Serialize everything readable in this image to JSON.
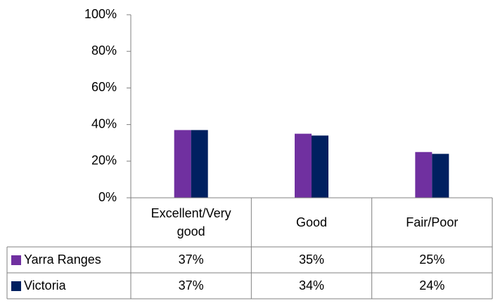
{
  "chart_data": {
    "type": "bar",
    "categories": [
      "Excellent/Very good",
      "Good",
      "Fair/Poor"
    ],
    "series": [
      {
        "name": "Yarra Ranges",
        "color": "#7030A0",
        "values": [
          37,
          35,
          25
        ],
        "value_labels": [
          "37%",
          "35%",
          "25%"
        ]
      },
      {
        "name": "Victoria",
        "color": "#002060",
        "values": [
          37,
          34,
          24
        ],
        "value_labels": [
          "37%",
          "34%",
          "24%"
        ]
      }
    ],
    "ylim": [
      0,
      100
    ],
    "yticks": [
      {
        "value": 0,
        "label": "0%"
      },
      {
        "value": 20,
        "label": "20%"
      },
      {
        "value": 40,
        "label": "40%"
      },
      {
        "value": 60,
        "label": "60%"
      },
      {
        "value": 80,
        "label": "80%"
      },
      {
        "value": 100,
        "label": "100%"
      }
    ],
    "legend": "table"
  }
}
